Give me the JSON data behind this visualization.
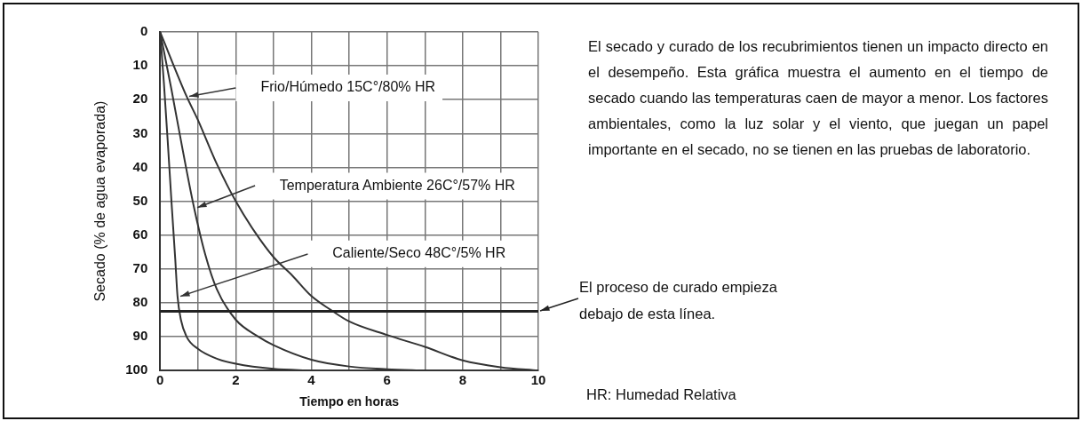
{
  "chart_data": {
    "type": "line",
    "xlabel": "Tiempo en horas",
    "ylabel": "Secado (% de agua evaporada)",
    "xlim": [
      0,
      10
    ],
    "xticks": [
      0,
      {
        "value": 1,
        "label": null
      },
      2,
      {
        "value": 3,
        "label": null
      },
      4,
      {
        "value": 5,
        "label": null
      },
      6,
      {
        "value": 7,
        "label": null
      },
      8,
      {
        "value": 9,
        "label": null
      },
      10
    ],
    "ylim": [
      100,
      0
    ],
    "yticks": [
      0,
      10,
      20,
      30,
      40,
      50,
      60,
      70,
      80,
      90,
      100
    ],
    "grid": true,
    "legend": false,
    "marker": "none",
    "line_style": "solid",
    "series": [
      {
        "color": "#333333",
        "x": [
          0,
          0.7,
          1,
          1.5,
          2,
          2.5,
          3,
          3.5,
          4,
          4.5,
          5,
          6,
          7,
          8,
          9,
          10
        ],
        "values": [
          0,
          19,
          26,
          39,
          50,
          59,
          66.5,
          72,
          78,
          82,
          85.5,
          89.5,
          93,
          97,
          99,
          100
        ]
      },
      {
        "color": "#333333",
        "x": [
          0,
          0.3,
          0.6,
          0.9,
          1.2,
          1.5,
          2,
          2.6,
          3,
          4,
          5,
          6,
          7
        ],
        "values": [
          0,
          17,
          35,
          52,
          66,
          76,
          85,
          90,
          92.5,
          96.8,
          98.8,
          99.6,
          100
        ]
      },
      {
        "color": "#333333",
        "x": [
          0,
          0.1,
          0.2,
          0.3,
          0.4,
          0.46,
          0.55,
          0.7,
          1,
          1.5,
          2,
          3,
          4
        ],
        "values": [
          0,
          15,
          32,
          50,
          67,
          78,
          85,
          90,
          93.6,
          96.5,
          98,
          99.5,
          100
        ]
      }
    ],
    "ref_lines": [
      {
        "axis": "y",
        "value": 82.5,
        "label": "El proceso de curado empieza debajo de esta línea.",
        "color": "#222222",
        "line_style": "solid"
      }
    ],
    "annotations": [
      "Frio/Húmedo 15C°/80% HR",
      "Temperatura Ambiente 26C°/57% HR",
      "Caliente/Seco 48C°/5% HR",
      "El secado y curado de los recubrimientos tienen un impacto directo en el desempeño. Esta gráfica muestra el aumento en el tiempo de secado cuando las temperaturas caen de mayor a menor. Los factores ambientales, como la luz solar y el viento, que juegan un papel importante en el secado, no se tienen en las pruebas de laboratorio.",
      "HR: Humedad Relativa"
    ]
  }
}
